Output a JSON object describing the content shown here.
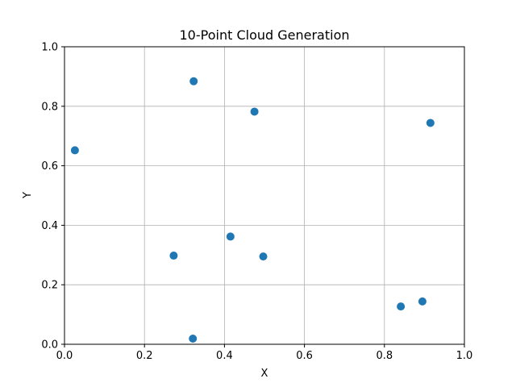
{
  "chart_data": {
    "type": "scatter",
    "title": "10-Point Cloud Generation",
    "xlabel": "X",
    "ylabel": "Y",
    "xlim": [
      0.0,
      1.0
    ],
    "ylim": [
      0.0,
      1.0
    ],
    "xticks": [
      "0.0",
      "0.2",
      "0.4",
      "0.6",
      "0.8",
      "1.0"
    ],
    "yticks": [
      "0.0",
      "0.2",
      "0.4",
      "0.6",
      "0.8",
      "1.0"
    ],
    "grid": true,
    "marker_color": "#1f77b4",
    "points": [
      {
        "x": 0.026,
        "y": 0.652
      },
      {
        "x": 0.323,
        "y": 0.884
      },
      {
        "x": 0.475,
        "y": 0.782
      },
      {
        "x": 0.915,
        "y": 0.744
      },
      {
        "x": 0.415,
        "y": 0.362
      },
      {
        "x": 0.273,
        "y": 0.298
      },
      {
        "x": 0.497,
        "y": 0.295
      },
      {
        "x": 0.841,
        "y": 0.127
      },
      {
        "x": 0.895,
        "y": 0.144
      },
      {
        "x": 0.321,
        "y": 0.019
      }
    ]
  }
}
